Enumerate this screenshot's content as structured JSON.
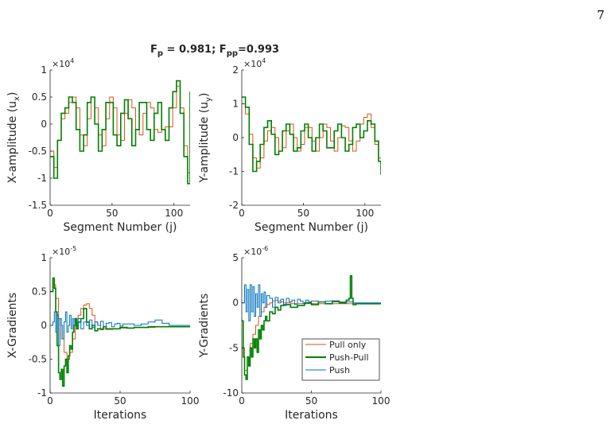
{
  "page_number": "7",
  "figure_title": {
    "main": "F",
    "sub1": "p",
    "mid": " = 0.981; F",
    "sub2": "pp",
    "end": "=0.993"
  },
  "colors": {
    "pull_only": "#d95319",
    "push_pull": "#008000",
    "push": "#0072bd",
    "axis": "#262626"
  },
  "chart_data": [
    {
      "id": "x-amplitude",
      "type": "line",
      "step": true,
      "xlabel": "Segment Number (j)",
      "ylabel": {
        "main": "X-amplitude (u",
        "sub": "x",
        "end": ")"
      },
      "exponent": {
        "base": "×10",
        "power": "4"
      },
      "xlim": [
        0,
        113
      ],
      "ylim": [
        -1.5,
        1
      ],
      "xticks": [
        0,
        50,
        100
      ],
      "yticks": [
        -1.5,
        -1,
        -0.5,
        0,
        0.5,
        1
      ],
      "ytick_labels": [
        "-1.5",
        "-1",
        "-0.5",
        "0",
        "0.5",
        "1"
      ],
      "series": [
        {
          "key": "pull_only",
          "x": [
            0,
            3,
            6,
            9,
            12,
            15,
            18,
            21,
            24,
            27,
            30,
            33,
            36,
            39,
            42,
            45,
            48,
            51,
            54,
            57,
            60,
            63,
            66,
            69,
            72,
            75,
            78,
            81,
            84,
            87,
            90,
            93,
            96,
            99,
            102,
            105,
            108,
            111,
            113
          ],
          "y": [
            -0.5,
            -0.8,
            -0.3,
            0.1,
            0.2,
            0.4,
            0.5,
            0.3,
            -0.2,
            -0.4,
            0.1,
            0.5,
            0.3,
            -0.2,
            -0.4,
            0.1,
            0.5,
            0.3,
            -0.2,
            -0.3,
            0.2,
            0.45,
            0.3,
            -0.1,
            -0.2,
            0.2,
            0.4,
            0.3,
            -0.1,
            -0.15,
            -0.1,
            -0.05,
            -0.05,
            0.3,
            0.7,
            0.3,
            -0.4,
            -0.9,
            -0.6
          ]
        },
        {
          "key": "push_pull",
          "x": [
            0,
            3,
            6,
            9,
            12,
            15,
            18,
            21,
            24,
            27,
            30,
            33,
            36,
            39,
            42,
            45,
            48,
            51,
            54,
            57,
            60,
            63,
            66,
            69,
            72,
            75,
            78,
            81,
            84,
            87,
            90,
            93,
            96,
            99,
            102,
            105,
            108,
            111,
            113
          ],
          "y": [
            -0.6,
            -1.0,
            -0.3,
            0.2,
            0.3,
            0.5,
            0.4,
            -0.1,
            -0.5,
            -0.2,
            0.4,
            0.5,
            0.0,
            -0.5,
            -0.1,
            0.4,
            0.4,
            -0.2,
            -0.4,
            0.2,
            0.45,
            0.1,
            -0.4,
            -0.1,
            0.4,
            0.4,
            -0.1,
            -0.3,
            0.2,
            0.4,
            -0.1,
            -0.3,
            0.3,
            0.6,
            0.8,
            0.2,
            -0.6,
            -1.1,
            0.6
          ]
        }
      ]
    },
    {
      "id": "y-amplitude",
      "type": "line",
      "step": true,
      "xlabel": "Segment Number (j)",
      "ylabel": {
        "main": "Y-amplitude (u",
        "sub": "y",
        "end": ")"
      },
      "exponent": {
        "base": "×10",
        "power": "4"
      },
      "xlim": [
        0,
        113
      ],
      "ylim": [
        -2,
        2
      ],
      "xticks": [
        0,
        50,
        100
      ],
      "yticks": [
        -2,
        -1,
        0,
        1,
        2
      ],
      "ytick_labels": [
        "-2",
        "-1",
        "0",
        "1",
        "2"
      ],
      "series": [
        {
          "key": "pull_only",
          "x": [
            0,
            3,
            6,
            9,
            12,
            15,
            18,
            21,
            24,
            27,
            30,
            33,
            36,
            39,
            42,
            45,
            48,
            51,
            54,
            57,
            60,
            63,
            66,
            69,
            72,
            75,
            78,
            81,
            84,
            87,
            90,
            93,
            96,
            99,
            102,
            105,
            108,
            111,
            113
          ],
          "y": [
            1.0,
            0.7,
            0.1,
            -0.6,
            -0.9,
            -0.6,
            -0.1,
            0.2,
            0.3,
            0.0,
            -0.4,
            -0.3,
            0.2,
            0.4,
            0.0,
            -0.4,
            -0.2,
            0.3,
            0.3,
            -0.1,
            -0.4,
            0.0,
            0.4,
            0.3,
            -0.1,
            -0.4,
            0.0,
            0.35,
            0.3,
            -0.1,
            -0.4,
            -0.1,
            0.4,
            0.6,
            0.7,
            0.3,
            -0.2,
            -0.6,
            -0.6
          ]
        },
        {
          "key": "push_pull",
          "x": [
            0,
            3,
            6,
            9,
            12,
            15,
            18,
            21,
            24,
            27,
            30,
            33,
            36,
            39,
            42,
            45,
            48,
            51,
            54,
            57,
            60,
            63,
            66,
            69,
            72,
            75,
            78,
            81,
            84,
            87,
            90,
            93,
            96,
            99,
            102,
            105,
            108,
            111,
            113
          ],
          "y": [
            1.2,
            0.9,
            -0.2,
            -1.0,
            -0.7,
            -0.2,
            0.3,
            0.5,
            0.1,
            -0.5,
            -0.4,
            0.2,
            0.4,
            0.1,
            -0.4,
            -0.3,
            0.2,
            0.4,
            0.0,
            -0.4,
            0.0,
            0.4,
            0.2,
            -0.3,
            -0.3,
            0.2,
            0.4,
            0.0,
            -0.4,
            -0.2,
            0.3,
            0.4,
            0.0,
            0.2,
            0.5,
            0.4,
            -0.1,
            -0.7,
            -1.1
          ]
        }
      ]
    },
    {
      "id": "x-gradients",
      "type": "line",
      "step": true,
      "xlabel": "Iterations",
      "ylabel": {
        "main": "X-Gradients",
        "sub": "",
        "end": ""
      },
      "exponent": {
        "base": "×10",
        "power": "-5"
      },
      "xlim": [
        0,
        100
      ],
      "ylim": [
        -1,
        1
      ],
      "xticks": [
        0,
        50,
        100
      ],
      "yticks": [
        -1,
        -0.5,
        0,
        0.5,
        1
      ],
      "ytick_labels": [
        "-1",
        "-0.5",
        "0",
        "0.5",
        "1"
      ],
      "series": [
        {
          "key": "pull_only",
          "x": [
            0,
            2,
            4,
            6,
            8,
            10,
            12,
            14,
            16,
            18,
            20,
            22,
            24,
            26,
            28,
            30,
            32,
            34,
            36,
            40,
            45,
            50,
            55,
            60,
            65,
            70,
            75,
            80,
            85,
            90,
            95,
            100
          ],
          "y": [
            0.5,
            0.6,
            0.4,
            0.1,
            -0.2,
            -0.4,
            -0.5,
            -0.4,
            -0.2,
            0.0,
            0.15,
            0.25,
            0.3,
            0.32,
            0.25,
            0.15,
            0.05,
            0.0,
            -0.05,
            -0.06,
            -0.05,
            -0.04,
            -0.04,
            -0.03,
            -0.03,
            -0.03,
            -0.02,
            -0.02,
            -0.02,
            -0.02,
            -0.02,
            -0.02
          ]
        },
        {
          "key": "push_pull",
          "x": [
            0,
            2,
            3,
            4,
            5,
            6,
            7,
            8,
            9,
            10,
            11,
            12,
            13,
            14,
            15,
            16,
            17,
            18,
            19,
            20,
            22,
            24,
            26,
            28,
            30,
            32,
            34,
            36,
            38,
            40,
            45,
            50,
            55,
            60,
            65,
            70,
            75,
            80,
            85,
            90,
            95,
            100
          ],
          "y": [
            0.5,
            0.7,
            0.55,
            0.2,
            -0.3,
            -0.7,
            -0.8,
            -0.65,
            -0.9,
            -0.6,
            -0.5,
            -0.7,
            -0.45,
            -0.3,
            -0.35,
            -0.1,
            0.0,
            0.1,
            -0.05,
            0.05,
            0.1,
            0.25,
            0.05,
            -0.05,
            0.0,
            -0.08,
            -0.05,
            -0.06,
            -0.02,
            -0.05,
            -0.05,
            -0.03,
            -0.04,
            -0.03,
            -0.03,
            -0.02,
            -0.02,
            -0.02,
            -0.02,
            -0.02,
            -0.02,
            -0.02
          ]
        },
        {
          "key": "push",
          "x": [
            0,
            2,
            3,
            4,
            5,
            6,
            7,
            8,
            9,
            10,
            11,
            12,
            13,
            14,
            15,
            16,
            17,
            18,
            20,
            22,
            24,
            26,
            28,
            30,
            32,
            34,
            36,
            38,
            40,
            42,
            44,
            46,
            48,
            50,
            52,
            55,
            60,
            65,
            70,
            75,
            80,
            85,
            90,
            95,
            100
          ],
          "y": [
            0.0,
            0.05,
            0.2,
            -0.1,
            0.15,
            -0.3,
            0.1,
            0.0,
            -0.2,
            0.05,
            0.2,
            -0.1,
            0.0,
            0.15,
            -0.05,
            0.1,
            0.0,
            0.05,
            0.1,
            -0.05,
            0.05,
            0.0,
            0.08,
            -0.03,
            0.05,
            0.0,
            0.06,
            -0.02,
            0.03,
            0.04,
            -0.02,
            0.02,
            0.03,
            -0.01,
            0.02,
            0.02,
            0.0,
            0.02,
            0.05,
            0.08,
            0.03,
            0.0,
            0.0,
            0.0,
            0.0
          ]
        }
      ]
    },
    {
      "id": "y-gradients",
      "type": "line",
      "step": true,
      "xlabel": "Iterations",
      "ylabel": {
        "main": "Y-Gradients",
        "sub": "",
        "end": ""
      },
      "exponent": {
        "base": "×10",
        "power": "-6"
      },
      "xlim": [
        0,
        100
      ],
      "ylim": [
        -10,
        5
      ],
      "xticks": [
        0,
        50,
        100
      ],
      "yticks": [
        -10,
        -5,
        0,
        5
      ],
      "ytick_labels": [
        "-10",
        "-5",
        "0",
        "5"
      ],
      "legend": {
        "placement": "bottom-right",
        "entries": [
          "Pull only",
          "Push-Pull",
          "Push"
        ]
      },
      "series": [
        {
          "key": "pull_only",
          "name": "Pull only",
          "x": [
            0,
            2,
            4,
            6,
            8,
            10,
            12,
            14,
            16,
            18,
            20,
            22,
            24,
            26,
            28,
            30,
            35,
            40,
            45,
            50,
            55,
            60,
            65,
            70,
            75,
            80,
            85,
            90,
            95,
            100
          ],
          "y": [
            -5,
            -7.5,
            -6,
            -4.5,
            -3.5,
            -2.5,
            -1.5,
            -1,
            -0.5,
            -0.2,
            0,
            0.2,
            0.3,
            0.2,
            0.1,
            0,
            -0.1,
            -0.1,
            -0.1,
            -0.1,
            -0.1,
            -0.1,
            -0.1,
            -0.1,
            -0.1,
            -0.1,
            -0.1,
            -0.1,
            -0.1,
            -0.1
          ]
        },
        {
          "key": "push_pull",
          "name": "Push-Pull",
          "x": [
            0,
            1,
            2,
            3,
            4,
            5,
            6,
            7,
            8,
            9,
            10,
            11,
            12,
            13,
            14,
            15,
            16,
            17,
            18,
            20,
            22,
            24,
            26,
            28,
            30,
            35,
            40,
            45,
            50,
            55,
            60,
            65,
            70,
            75,
            77,
            78,
            79,
            80,
            82,
            85,
            90,
            95,
            100
          ],
          "y": [
            -2,
            -6,
            -8,
            -8.5,
            -6,
            -7,
            -5,
            -6,
            -4,
            -5,
            -4,
            -5.5,
            -3,
            -4,
            -2.5,
            -3,
            -2,
            -1.5,
            -2,
            -1,
            -1.2,
            -0.5,
            -0.8,
            -0.3,
            -0.2,
            -0.5,
            -0.3,
            0,
            -0.2,
            0.1,
            -0.1,
            0.2,
            0,
            0.3,
            0.5,
            3,
            0.5,
            -0.2,
            -0.1,
            -0.1,
            -0.1,
            -0.1,
            -0.1
          ]
        },
        {
          "key": "push",
          "name": "Push",
          "x": [
            0,
            2,
            3,
            4,
            5,
            6,
            7,
            8,
            9,
            10,
            11,
            12,
            13,
            14,
            15,
            16,
            17,
            18,
            20,
            22,
            24,
            26,
            28,
            30,
            32,
            34,
            36,
            38,
            40,
            42,
            44,
            46,
            48,
            50,
            55,
            60,
            65,
            70,
            75,
            80,
            85,
            90,
            95,
            100
          ],
          "y": [
            0,
            2,
            -1,
            1.5,
            -2,
            2,
            -1,
            1.8,
            -1.5,
            1,
            -0.5,
            2,
            -1.5,
            1,
            0,
            1.2,
            -0.5,
            0.8,
            0.5,
            -0.5,
            0.6,
            0,
            0.4,
            -0.3,
            0.5,
            0.1,
            0.3,
            -0.2,
            0.4,
            0.2,
            -0.1,
            0.3,
            0.1,
            0.2,
            0.1,
            0.2,
            0.1,
            0.1,
            0.1,
            0,
            0,
            0,
            0,
            0
          ]
        }
      ]
    }
  ]
}
